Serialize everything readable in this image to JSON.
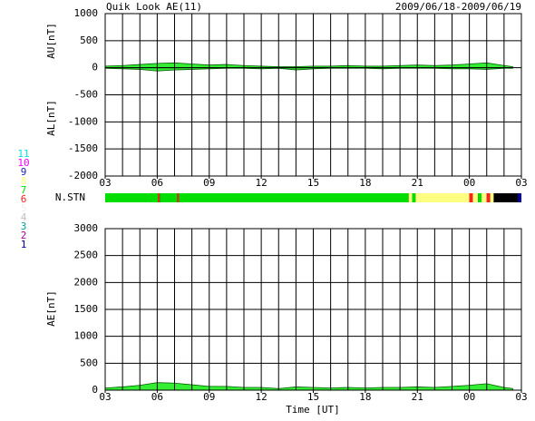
{
  "chart_data": [
    {
      "type": "area",
      "title": "Quik Look AE(11)",
      "subtitle": "2009/06/18-2009/06/19",
      "x": [
        3,
        4,
        5,
        6,
        7,
        8,
        9,
        10,
        11,
        12,
        13,
        14,
        15,
        16,
        17,
        18,
        19,
        20,
        21,
        22,
        23,
        24,
        25,
        26,
        26.5
      ],
      "series": [
        {
          "name": "AU[nT]",
          "color": "#33ee33",
          "values": [
            30,
            40,
            60,
            80,
            90,
            70,
            50,
            60,
            40,
            30,
            20,
            20,
            30,
            30,
            40,
            30,
            30,
            40,
            50,
            40,
            50,
            70,
            90,
            40,
            20
          ]
        },
        {
          "name": "AL[nT]",
          "color": "#33ee33",
          "values": [
            -10,
            -20,
            -30,
            -60,
            -40,
            -30,
            -20,
            -10,
            -10,
            -20,
            -10,
            -40,
            -20,
            -10,
            -10,
            -10,
            -20,
            -10,
            -10,
            -10,
            -20,
            -20,
            -30,
            -10,
            -10
          ]
        }
      ],
      "xlim": [
        3,
        27
      ],
      "xticks": [
        {
          "value": 3,
          "label": "03"
        },
        {
          "value": 6,
          "label": "06"
        },
        {
          "value": 9,
          "label": "09"
        },
        12,
        15,
        18,
        21,
        {
          "value": 24,
          "label": "00"
        },
        {
          "value": 27,
          "label": "03"
        }
      ],
      "ylim": [
        -2000,
        1000
      ],
      "yticks": [
        -2000,
        -1500,
        -1000,
        -500,
        0,
        500,
        1000
      ],
      "grid": true,
      "grid_step": 1
    },
    {
      "type": "strip",
      "label": "N.STN",
      "segments": [
        [
          3,
          6.05,
          7
        ],
        [
          6.05,
          6.15,
          6
        ],
        [
          6.15,
          7.15,
          7
        ],
        [
          7.15,
          7.25,
          6
        ],
        [
          7.25,
          20.5,
          7
        ],
        [
          20.5,
          20.7,
          8
        ],
        [
          20.7,
          20.9,
          7
        ],
        [
          20.9,
          24.0,
          8
        ],
        [
          24.0,
          24.2,
          6
        ],
        [
          24.2,
          24.5,
          8
        ],
        [
          24.5,
          24.7,
          7
        ],
        [
          24.7,
          25.0,
          8
        ],
        [
          25.0,
          25.2,
          6
        ],
        [
          25.2,
          25.4,
          8
        ],
        [
          26.8,
          27,
          1
        ]
      ],
      "xlim": [
        3,
        27
      ],
      "legend": {
        "labels": [
          "11",
          "10",
          "9",
          "8",
          "7",
          "6",
          "5",
          "4",
          "3",
          "2",
          "1"
        ],
        "colors": [
          "#00e0e0",
          "#ff00ff",
          "#2020c0",
          "#ffff80",
          "#00dd00",
          "#ff2020",
          "#f0f0f0",
          "#c0c0c0",
          "#00a0a0",
          "#a000a0",
          "#0000a0"
        ]
      }
    },
    {
      "type": "area",
      "x_label": "Time [UT]",
      "x": [
        3,
        4,
        5,
        6,
        7,
        8,
        9,
        10,
        11,
        12,
        13,
        14,
        15,
        16,
        17,
        18,
        19,
        20,
        21,
        22,
        23,
        24,
        25,
        26,
        26.5
      ],
      "series": [
        {
          "name": "AE[nT]",
          "color": "#33ee33",
          "values": [
            40,
            60,
            90,
            140,
            130,
            100,
            70,
            70,
            50,
            50,
            30,
            60,
            50,
            40,
            50,
            40,
            50,
            50,
            60,
            50,
            70,
            90,
            120,
            50,
            30
          ]
        }
      ],
      "xlim": [
        3,
        27
      ],
      "xticks": [
        {
          "value": 3,
          "label": "03"
        },
        {
          "value": 6,
          "label": "06"
        },
        {
          "value": 9,
          "label": "09"
        },
        12,
        15,
        18,
        21,
        {
          "value": 24,
          "label": "00"
        },
        {
          "value": 27,
          "label": "03"
        }
      ],
      "ylim": [
        0,
        3000
      ],
      "yticks": [
        0,
        500,
        1000,
        1500,
        2000,
        2500,
        3000
      ],
      "grid": true,
      "grid_step": 1
    }
  ]
}
